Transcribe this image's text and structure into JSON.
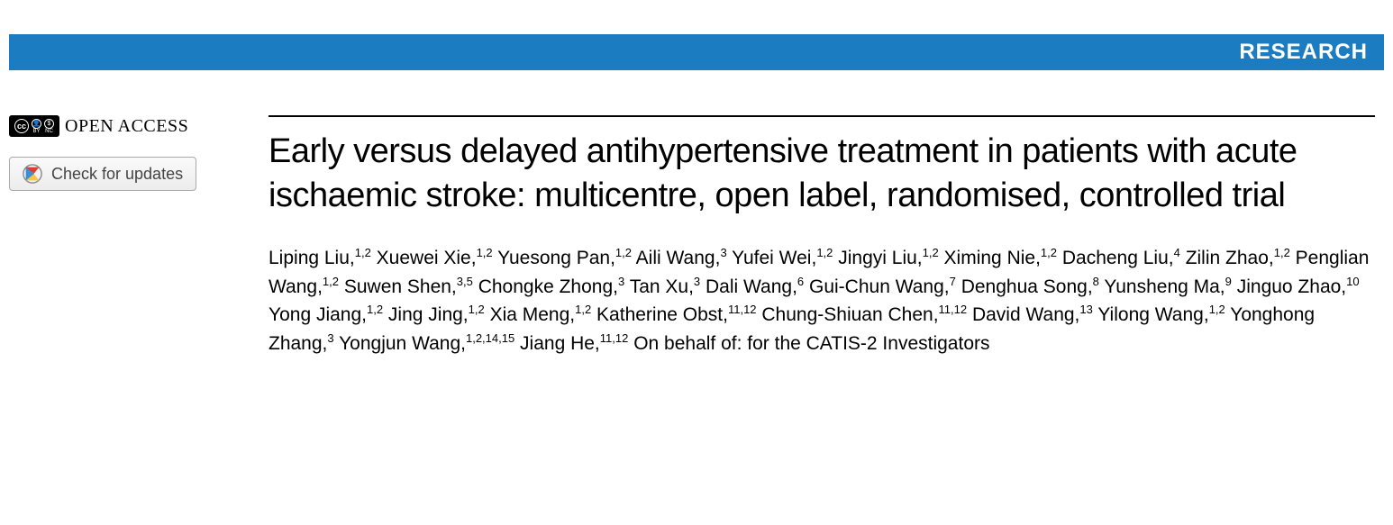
{
  "banner": {
    "label": "RESEARCH",
    "background_color": "#1b7cc2",
    "text_color": "#ffffff"
  },
  "sidebar": {
    "open_access_label": "OPEN ACCESS",
    "cc_text": "cc",
    "check_updates_label": "Check for updates"
  },
  "article": {
    "title": "Early versus delayed antihypertensive treatment in patients with acute ischaemic stroke: multicentre, open label, randomised, controlled trial",
    "authors": [
      {
        "name": "Liping Liu",
        "affil": "1,2"
      },
      {
        "name": "Xuewei Xie",
        "affil": "1,2"
      },
      {
        "name": "Yuesong Pan",
        "affil": "1,2"
      },
      {
        "name": "Aili Wang",
        "affil": "3"
      },
      {
        "name": "Yufei Wei",
        "affil": "1,2"
      },
      {
        "name": "Jingyi Liu",
        "affil": "1,2"
      },
      {
        "name": "Ximing Nie",
        "affil": "1,2"
      },
      {
        "name": "Dacheng Liu",
        "affil": "4"
      },
      {
        "name": "Zilin Zhao",
        "affil": "1,2"
      },
      {
        "name": "Penglian Wang",
        "affil": "1,2"
      },
      {
        "name": "Suwen Shen",
        "affil": "3,5"
      },
      {
        "name": "Chongke Zhong",
        "affil": "3"
      },
      {
        "name": "Tan Xu",
        "affil": "3"
      },
      {
        "name": "Dali Wang",
        "affil": "6"
      },
      {
        "name": "Gui-Chun Wang",
        "affil": "7"
      },
      {
        "name": "Denghua Song",
        "affil": "8"
      },
      {
        "name": "Yunsheng Ma",
        "affil": "9"
      },
      {
        "name": "Jinguo Zhao",
        "affil": "10"
      },
      {
        "name": "Yong Jiang",
        "affil": "1,2"
      },
      {
        "name": "Jing Jing",
        "affil": "1,2"
      },
      {
        "name": "Xia Meng",
        "affil": "1,2"
      },
      {
        "name": "Katherine Obst",
        "affil": "11,12"
      },
      {
        "name": "Chung-Shiuan Chen",
        "affil": "11,12"
      },
      {
        "name": "David Wang",
        "affil": "13"
      },
      {
        "name": "Yilong Wang",
        "affil": "1,2"
      },
      {
        "name": "Yonghong Zhang",
        "affil": "3"
      },
      {
        "name": "Yongjun Wang",
        "affil": "1,2,14,15"
      },
      {
        "name": "Jiang He",
        "affil": "11,12"
      }
    ],
    "on_behalf": "On behalf of: for the CATIS-2 Investigators"
  },
  "colors": {
    "rule": "#000000",
    "page_bg": "#ffffff",
    "button_border": "#aaaaaa",
    "button_text": "#444444"
  },
  "typography": {
    "title_fontsize": 38,
    "authors_fontsize": 21,
    "banner_fontsize": 24
  }
}
